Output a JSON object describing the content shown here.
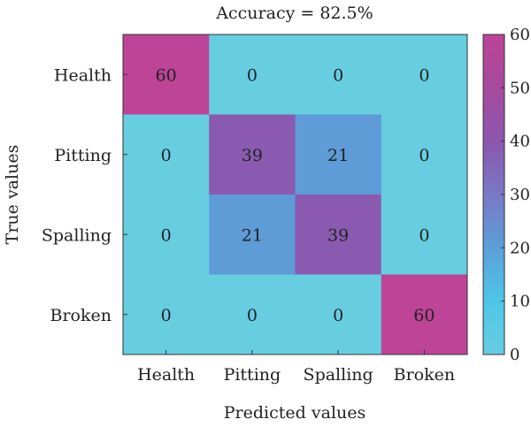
{
  "chart_data": {
    "type": "heatmap",
    "title": "Accuracy = 82.5%",
    "xlabel": "Predicted values",
    "ylabel": "True values",
    "x_categories": [
      "Health",
      "Pitting",
      "Spalling",
      "Broken"
    ],
    "y_categories": [
      "Health",
      "Pitting",
      "Spalling",
      "Broken"
    ],
    "values": [
      [
        60,
        0,
        0,
        0
      ],
      [
        0,
        39,
        21,
        0
      ],
      [
        0,
        21,
        39,
        0
      ],
      [
        0,
        0,
        0,
        60
      ]
    ],
    "colorbar": {
      "range": [
        0,
        60
      ],
      "ticks": [
        "0",
        "10",
        "20",
        "30",
        "40",
        "50",
        "60"
      ],
      "colors": [
        "#67cde1",
        "#4ec6e8",
        "#5b9fd9",
        "#7a78c6",
        "#8c57ad",
        "#a64a9e",
        "#bd4497"
      ]
    },
    "grid": false
  }
}
